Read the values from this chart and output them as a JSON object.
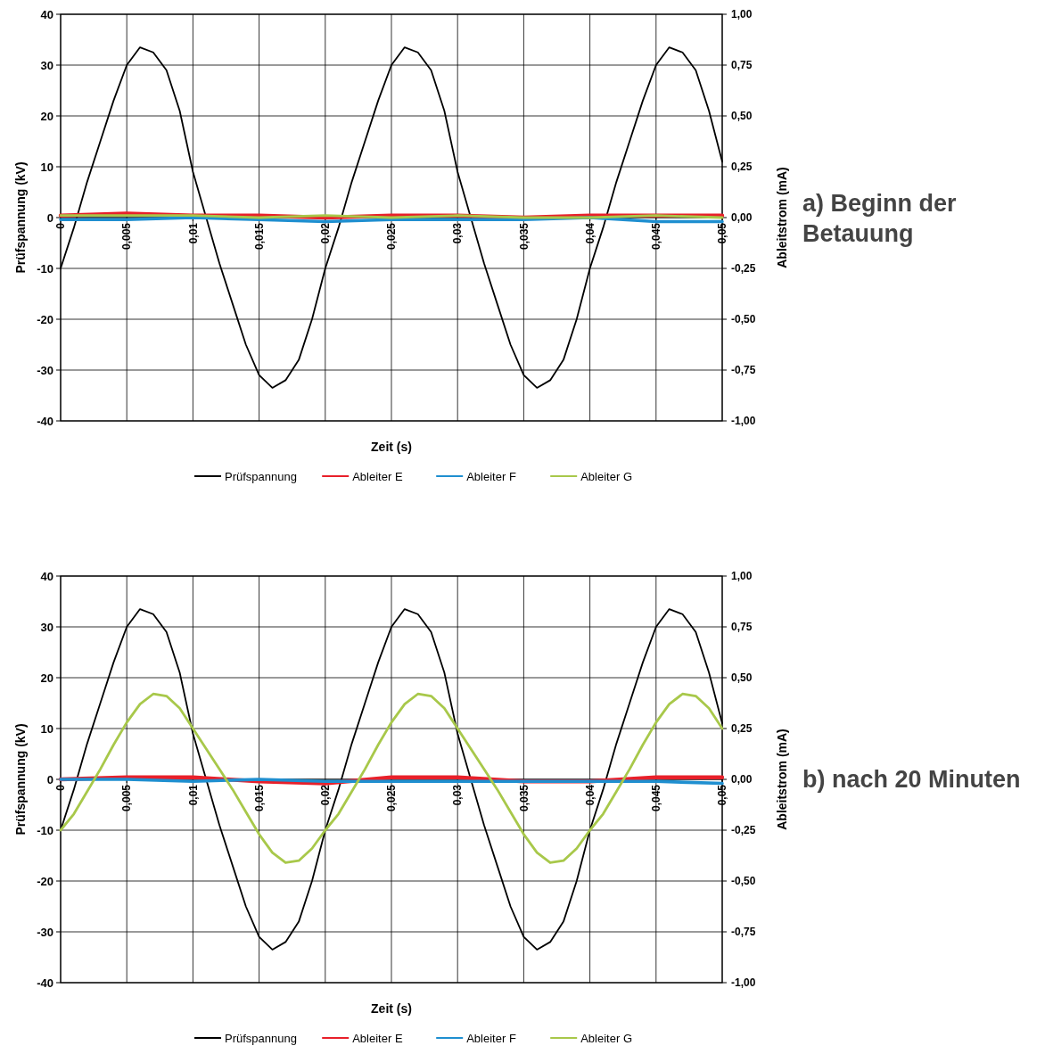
{
  "chart_data": [
    {
      "type": "line",
      "annotations": [
        "a) Beginn der Betauung"
      ],
      "xlabel": "Zeit  (s)",
      "ylabel": "Prüfspannung  (kV)",
      "y2label": "Ableitstrom  (mA)",
      "xlim": [
        0,
        0.05
      ],
      "ylim": [
        -40,
        40
      ],
      "y2lim": [
        -1,
        1
      ],
      "xticks": [
        0,
        {
          "value": 0.005,
          "label": "0,005"
        },
        {
          "value": 0.01,
          "label": "0,01"
        },
        {
          "value": 0.015,
          "label": "0,015"
        },
        {
          "value": 0.02,
          "label": "0,02"
        },
        {
          "value": 0.025,
          "label": "0,025"
        },
        {
          "value": 0.03,
          "label": "0,03"
        },
        {
          "value": 0.035,
          "label": "0,035"
        },
        {
          "value": 0.04,
          "label": "0,04"
        },
        {
          "value": 0.045,
          "label": "0,045"
        },
        {
          "value": 0.05,
          "label": "0,05"
        }
      ],
      "yticks": [
        -40,
        -30,
        -20,
        -10,
        0,
        10,
        20,
        30,
        40
      ],
      "y2ticks": [
        {
          "value": -1,
          "label": "-1,00"
        },
        {
          "value": -0.75,
          "label": "-0,75"
        },
        {
          "value": -0.5,
          "label": "-0,50"
        },
        {
          "value": -0.25,
          "label": "-0,25"
        },
        {
          "value": 0,
          "label": "0,00"
        },
        {
          "value": 0.25,
          "label": "0,25"
        },
        {
          "value": 0.5,
          "label": "0,50"
        },
        {
          "value": 0.75,
          "label": "0,75"
        },
        {
          "value": 1,
          "label": "1,00"
        }
      ],
      "grid": true,
      "legend": "bottom",
      "marker": "none",
      "line_style": "solid",
      "x": [
        0,
        0.001,
        0.002,
        0.003,
        0.004,
        0.005,
        0.006,
        0.007,
        0.008,
        0.009,
        0.01,
        0.011,
        0.012,
        0.013,
        0.014,
        0.015,
        0.016,
        0.017,
        0.018,
        0.019,
        0.02,
        0.021,
        0.022,
        0.023,
        0.024,
        0.025,
        0.026,
        0.027,
        0.028,
        0.029,
        0.03,
        0.031,
        0.032,
        0.033,
        0.034,
        0.035,
        0.036,
        0.037,
        0.038,
        0.039,
        0.04,
        0.041,
        0.042,
        0.043,
        0.044,
        0.045,
        0.046,
        0.047,
        0.048,
        0.049,
        0.05
      ],
      "series": [
        {
          "name": "Prüfspannung",
          "color": "#000000",
          "values": [
            -10,
            -2,
            7,
            15,
            23,
            30,
            33.5,
            32.5,
            29,
            21,
            9,
            0,
            -9,
            -17,
            -25,
            -31,
            -33.5,
            -32,
            -28,
            -20,
            -10,
            -2,
            7,
            15,
            23,
            30,
            33.5,
            32.5,
            29,
            21,
            9,
            0,
            -9,
            -17,
            -25,
            -31,
            -33.5,
            -32,
            -28,
            -20,
            -10,
            -2,
            7,
            15,
            23,
            30,
            33.5,
            32.5,
            29,
            21,
            11
          ]
        },
        {
          "name": "Ableiter E",
          "color": "#e8202a",
          "axis": "y2",
          "x": [
            0,
            0.005,
            0.01,
            0.015,
            0.02,
            0.025,
            0.03,
            0.035,
            0.04,
            0.045,
            0.05
          ],
          "values": [
            0.01,
            0.02,
            0.01,
            0.01,
            0.0,
            0.01,
            0.01,
            0.0,
            0.01,
            0.01,
            0.01
          ]
        },
        {
          "name": "Ableiter F",
          "color": "#1f8fd0",
          "axis": "y2",
          "x": [
            0,
            0.005,
            0.01,
            0.015,
            0.02,
            0.025,
            0.03,
            0.035,
            0.04,
            0.045,
            0.05
          ],
          "values": [
            -0.01,
            -0.01,
            0.0,
            -0.01,
            -0.02,
            -0.01,
            -0.01,
            -0.01,
            0.0,
            -0.02,
            -0.02
          ]
        },
        {
          "name": "Ableiter G",
          "color": "#a8c84a",
          "axis": "y2",
          "x": [
            0,
            0.005,
            0.01,
            0.015,
            0.02,
            0.025,
            0.03,
            0.035,
            0.04,
            0.045,
            0.05
          ],
          "values": [
            0.01,
            0.01,
            0.01,
            0.0,
            0.01,
            0.0,
            0.01,
            0.0,
            0.0,
            0.01,
            0.0
          ]
        }
      ]
    },
    {
      "type": "line",
      "annotations": [
        "b) nach 20 Minuten"
      ],
      "xlabel": "Zeit  (s)",
      "ylabel": "Prüfspannung  (kV)",
      "y2label": "Ableitstrom  (mA)",
      "xlim": [
        0,
        0.05
      ],
      "ylim": [
        -40,
        40
      ],
      "y2lim": [
        -1,
        1
      ],
      "xticks": [
        0,
        {
          "value": 0.005,
          "label": "0,005"
        },
        {
          "value": 0.01,
          "label": "0,01"
        },
        {
          "value": 0.015,
          "label": "0,015"
        },
        {
          "value": 0.02,
          "label": "0,02"
        },
        {
          "value": 0.025,
          "label": "0,025"
        },
        {
          "value": 0.03,
          "label": "0,03"
        },
        {
          "value": 0.035,
          "label": "0,035"
        },
        {
          "value": 0.04,
          "label": "0,04"
        },
        {
          "value": 0.045,
          "label": "0,045"
        },
        {
          "value": 0.05,
          "label": "0,05"
        }
      ],
      "yticks": [
        -40,
        -30,
        -20,
        -10,
        0,
        10,
        20,
        30,
        40
      ],
      "y2ticks": [
        {
          "value": -1,
          "label": "-1,00"
        },
        {
          "value": -0.75,
          "label": "-0,75"
        },
        {
          "value": -0.5,
          "label": "-0,50"
        },
        {
          "value": -0.25,
          "label": "-0,25"
        },
        {
          "value": 0,
          "label": "0,00"
        },
        {
          "value": 0.25,
          "label": "0,25"
        },
        {
          "value": 0.5,
          "label": "0,50"
        },
        {
          "value": 0.75,
          "label": "0,75"
        },
        {
          "value": 1,
          "label": "1,00"
        }
      ],
      "grid": true,
      "legend": "bottom",
      "marker": "none",
      "line_style": "solid",
      "x": [
        0,
        0.001,
        0.002,
        0.003,
        0.004,
        0.005,
        0.006,
        0.007,
        0.008,
        0.009,
        0.01,
        0.011,
        0.012,
        0.013,
        0.014,
        0.015,
        0.016,
        0.017,
        0.018,
        0.019,
        0.02,
        0.021,
        0.022,
        0.023,
        0.024,
        0.025,
        0.026,
        0.027,
        0.028,
        0.029,
        0.03,
        0.031,
        0.032,
        0.033,
        0.034,
        0.035,
        0.036,
        0.037,
        0.038,
        0.039,
        0.04,
        0.041,
        0.042,
        0.043,
        0.044,
        0.045,
        0.046,
        0.047,
        0.048,
        0.049,
        0.05
      ],
      "series": [
        {
          "name": "Prüfspannung",
          "color": "#000000",
          "values": [
            -10,
            -2,
            7,
            15,
            23,
            30,
            33.5,
            32.5,
            29,
            21,
            9,
            0,
            -9,
            -17,
            -25,
            -31,
            -33.5,
            -32,
            -28,
            -20,
            -10,
            -2,
            7,
            15,
            23,
            30,
            33.5,
            32.5,
            29,
            21,
            9,
            0,
            -9,
            -17,
            -25,
            -31,
            -33.5,
            -32,
            -28,
            -20,
            -10,
            -2,
            7,
            15,
            23,
            30,
            33.5,
            32.5,
            29,
            21,
            11
          ]
        },
        {
          "name": "Ableiter E",
          "color": "#e8202a",
          "axis": "y2",
          "x": [
            0,
            0.005,
            0.01,
            0.015,
            0.02,
            0.025,
            0.03,
            0.035,
            0.04,
            0.045,
            0.05
          ],
          "values": [
            0.0,
            0.01,
            0.01,
            -0.01,
            -0.02,
            0.01,
            0.01,
            -0.01,
            -0.01,
            0.01,
            0.01
          ]
        },
        {
          "name": "Ableiter F",
          "color": "#1f8fd0",
          "axis": "y2",
          "x": [
            0,
            0.005,
            0.01,
            0.015,
            0.02,
            0.025,
            0.03,
            0.035,
            0.04,
            0.045,
            0.05
          ],
          "values": [
            0.0,
            0.0,
            -0.01,
            0.0,
            -0.01,
            -0.01,
            -0.01,
            -0.01,
            -0.01,
            -0.01,
            -0.02
          ]
        },
        {
          "name": "Ableiter G",
          "color": "#a8c84a",
          "axis": "y2",
          "values": [
            -0.25,
            -0.17,
            -0.06,
            0.05,
            0.17,
            0.28,
            0.37,
            0.42,
            0.41,
            0.35,
            0.25,
            0.15,
            0.05,
            -0.05,
            -0.16,
            -0.27,
            -0.36,
            -0.41,
            -0.4,
            -0.34,
            -0.25,
            -0.17,
            -0.06,
            0.05,
            0.17,
            0.28,
            0.37,
            0.42,
            0.41,
            0.35,
            0.25,
            0.15,
            0.05,
            -0.05,
            -0.16,
            -0.27,
            -0.36,
            -0.41,
            -0.4,
            -0.34,
            -0.25,
            -0.17,
            -0.06,
            0.05,
            0.17,
            0.28,
            0.37,
            0.42,
            0.41,
            0.35,
            0.25
          ]
        }
      ]
    }
  ]
}
